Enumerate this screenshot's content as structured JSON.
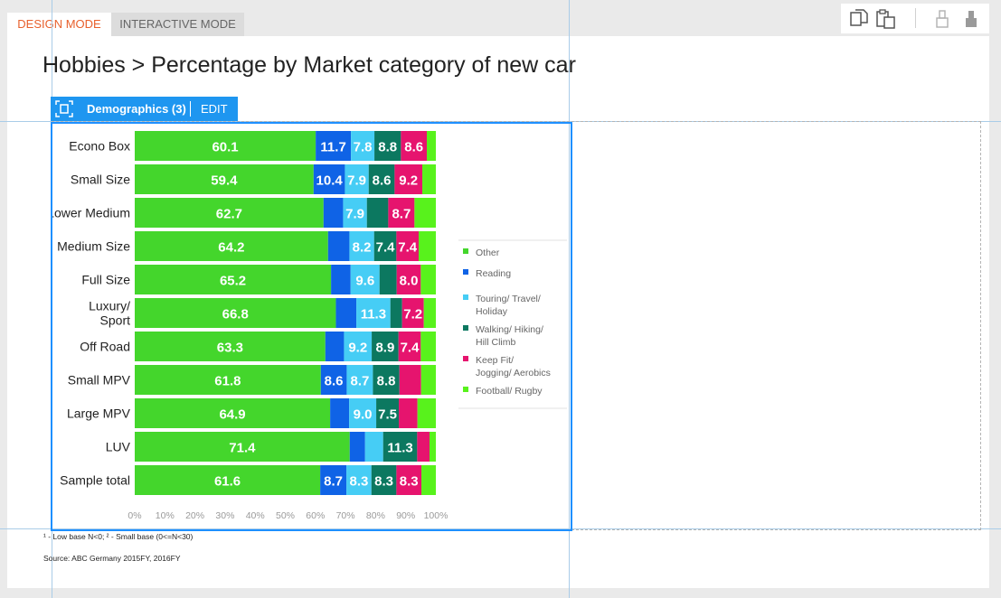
{
  "tabs": [
    {
      "label": "DESIGN MODE",
      "active": true
    },
    {
      "label": "INTERACTIVE MODE",
      "active": false
    }
  ],
  "toolbar": {
    "icons": [
      "copy-icon",
      "paste-icon",
      "format-brush-outline-icon",
      "format-brush-icon"
    ]
  },
  "page": {
    "title": "Hobbies > Percentage by Market category of new car"
  },
  "widget": {
    "label": "Demographics (3)",
    "edit_label": "EDIT"
  },
  "footnotes": {
    "base": "¹ - Low base N<0;   ² - Small base (0<=N<30)",
    "source": "Source: ABC Germany 2015FY, 2016FY"
  },
  "colors": {
    "accent": "#1e96f0",
    "design_tab": "#e8602c"
  },
  "chart_data": {
    "type": "bar",
    "orientation": "horizontal",
    "stacked": true,
    "categories": [
      "Econo Box",
      "Small Size",
      "Lower Medium",
      "Medium Size",
      "Full Size",
      "Luxury/ Sport",
      "Off Road",
      "Small MPV",
      "Large MPV",
      "LUV",
      "Sample total"
    ],
    "series": [
      {
        "name": "Other",
        "color": "#44d62c",
        "values": [
          60.1,
          59.4,
          62.7,
          64.2,
          65.2,
          66.8,
          63.3,
          61.8,
          64.9,
          71.4,
          61.6
        ],
        "labels": [
          "60.1",
          "59.4",
          "62.7",
          "64.2",
          "65.2",
          "66.8",
          "63.3",
          "61.8",
          "64.9",
          "71.4",
          "61.6"
        ]
      },
      {
        "name": "Reading",
        "color": "#0f63e6",
        "values": [
          11.7,
          10.4,
          6.5,
          7.1,
          6.5,
          6.8,
          6.2,
          8.6,
          6.3,
          5.1,
          8.7
        ],
        "labels": [
          "11.7",
          "10.4",
          "",
          "",
          "",
          "",
          "",
          "8.6",
          "",
          "",
          "8.7"
        ]
      },
      {
        "name": "Touring/ Travel/ Holiday",
        "color": "#46cdf5",
        "values": [
          7.8,
          7.9,
          7.9,
          8.2,
          9.6,
          11.3,
          9.2,
          8.7,
          9.0,
          6.0,
          8.3
        ],
        "labels": [
          "7.8",
          "7.9",
          "7.9",
          "8.2",
          "9.6",
          "11.3",
          "9.2",
          "8.7",
          "9.0",
          "",
          "8.3"
        ]
      },
      {
        "name": "Walking/ Hiking/ Hill Climb",
        "color": "#0c7860",
        "values": [
          8.8,
          8.6,
          7.1,
          7.4,
          5.7,
          3.9,
          8.9,
          8.8,
          7.5,
          11.3,
          8.3
        ],
        "labels": [
          "8.8",
          "8.6",
          "",
          "7.4",
          "",
          "",
          "8.9",
          "8.8",
          "7.5",
          "11.3",
          "8.3"
        ]
      },
      {
        "name": "Keep Fit/ Jogging/ Aerobics",
        "color": "#e6146e",
        "values": [
          8.6,
          9.2,
          8.7,
          7.4,
          8.0,
          7.2,
          7.4,
          7.2,
          6.2,
          4.1,
          8.3
        ],
        "labels": [
          "8.6",
          "9.2",
          "8.7",
          "7.4",
          "8.0",
          "7.2",
          "7.4",
          "",
          "",
          "",
          "8.3"
        ]
      },
      {
        "name": "Football/ Rugby",
        "color": "#58f21c",
        "values": [
          3.0,
          4.5,
          7.1,
          5.7,
          5.0,
          4.0,
          5.0,
          4.9,
          6.1,
          2.1,
          4.8
        ],
        "labels": [
          "",
          "",
          "",
          "",
          "",
          "",
          "",
          "",
          "",
          "",
          ""
        ]
      }
    ],
    "xlim": [
      0,
      100
    ],
    "x_ticks": [
      "0%",
      "10%",
      "20%",
      "30%",
      "40%",
      "50%",
      "60%",
      "70%",
      "80%",
      "90%",
      "100%"
    ],
    "legend_position": "right",
    "grid": false
  }
}
